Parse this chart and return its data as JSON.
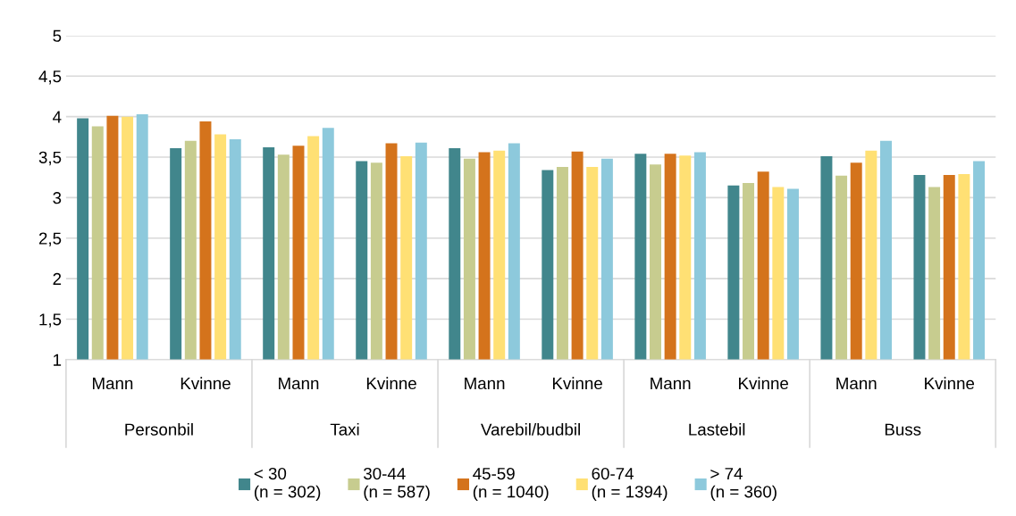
{
  "chart_data": {
    "type": "bar",
    "categories": [
      "Mann",
      "Kvinne",
      "Mann",
      "Kvinne",
      "Mann",
      "Kvinne",
      "Mann",
      "Kvinne",
      "Mann",
      "Kvinne"
    ],
    "annotations": [
      "Personbil",
      "Taxi",
      "Varebil/budbil",
      "Lastebil",
      "Buss"
    ],
    "series": [
      {
        "name": "< 30\n(n = 302)",
        "color": "#41868c",
        "values": [
          3.98,
          3.61,
          3.62,
          3.45,
          3.61,
          3.34,
          3.54,
          3.15,
          3.51,
          3.28
        ]
      },
      {
        "name": "30-44\n(n = 587)",
        "color": "#c7cc8f",
        "values": [
          3.88,
          3.7,
          3.53,
          3.43,
          3.48,
          3.38,
          3.41,
          3.18,
          3.27,
          3.13
        ]
      },
      {
        "name": "45-59\n(n = 1040)",
        "color": "#d4731c",
        "values": [
          4.01,
          3.94,
          3.64,
          3.67,
          3.56,
          3.57,
          3.54,
          3.32,
          3.43,
          3.28
        ]
      },
      {
        "name": "60-74\n(n = 1394)",
        "color": "#ffe074",
        "values": [
          4.0,
          3.78,
          3.76,
          3.51,
          3.58,
          3.38,
          3.52,
          3.13,
          3.58,
          3.29
        ]
      },
      {
        "name": "> 74\n(n = 360)",
        "color": "#8dc9dc",
        "values": [
          4.03,
          3.72,
          3.86,
          3.68,
          3.67,
          3.48,
          3.56,
          3.11,
          3.7,
          3.45
        ]
      }
    ],
    "ylim": [
      1,
      5
    ],
    "yticks": [
      1,
      {
        "value": 1.5,
        "label": "1,5"
      },
      2,
      {
        "value": 2.5,
        "label": "2,5"
      },
      3,
      {
        "value": 3.5,
        "label": "3,5"
      },
      4,
      {
        "value": 4.5,
        "label": "4,5"
      },
      5
    ],
    "grid": "y",
    "legend": "bottom"
  }
}
